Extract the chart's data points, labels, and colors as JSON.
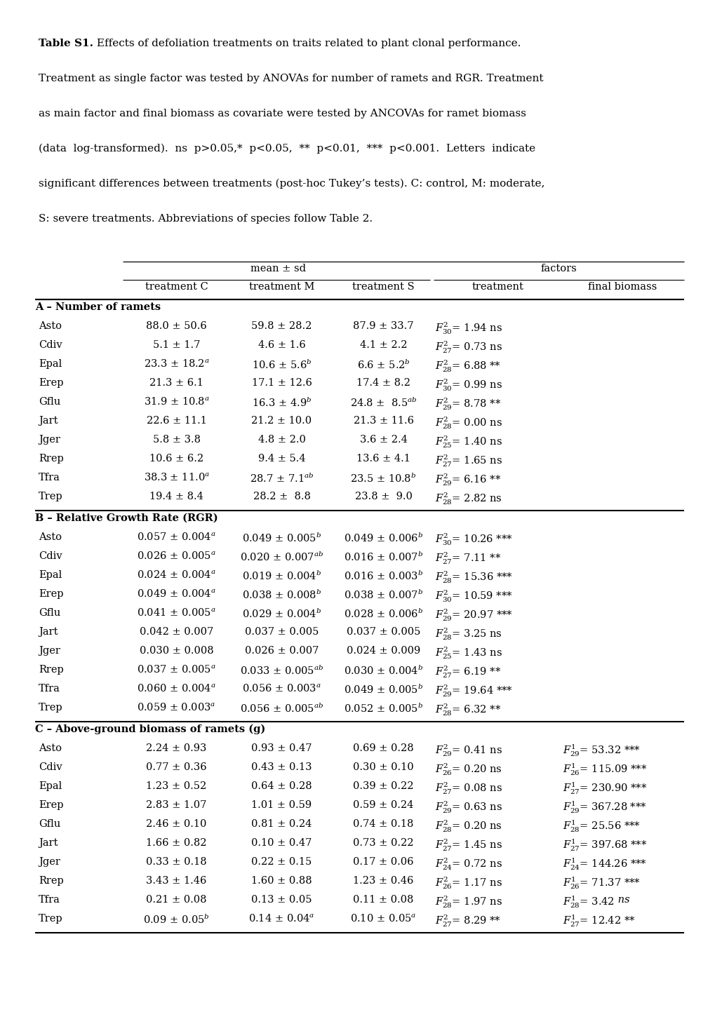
{
  "figsize": [
    10.2,
    14.43
  ],
  "dpi": 100,
  "font_size": 10.5,
  "caption_font_size": 11.0,
  "caption_lines": [
    [
      [
        "bold",
        "Table S1."
      ],
      [
        "normal",
        " Effects of defoliation treatments on traits related to plant clonal performance."
      ]
    ],
    [
      [
        "normal",
        "Treatment as single factor was tested by ANOVAs for number of ramets and RGR. Treatment"
      ]
    ],
    [
      [
        "normal",
        "as main factor and final biomass as covariate were tested by ANCOVAs for ramet biomass"
      ]
    ],
    [
      [
        "normal",
        "(data  log-transformed).  ns  p>0.05,*  p<0.05,  **  p<0.01,  ***  p<0.001.  Letters  indicate"
      ]
    ],
    [
      [
        "normal",
        "significant differences between treatments (post-hoc Tukey’s tests). C: control, M: moderate,"
      ]
    ],
    [
      [
        "normal",
        "S: severe treatments. Abbreviations of species follow Table 2."
      ]
    ]
  ],
  "col_headers_sub": [
    "treatment C",
    "treatment M",
    "treatment S",
    "treatment",
    "final biomass"
  ],
  "sections": [
    {
      "label": "A – Number of ramets",
      "rows": [
        [
          "Asto",
          "88.0 ± 50.6",
          "59.8 ± 28.2",
          "87.9 ± 33.7",
          "$F^2_{30}$= 1.94 ns",
          ""
        ],
        [
          "Cdiv",
          "5.1 ± 1.7",
          "4.6 ± 1.6",
          "4.1 ± 2.2",
          "$F^2_{27}$= 0.73 ns",
          ""
        ],
        [
          "Epal",
          "23.3 ± 18.2$^a$",
          "10.6 ± 5.6$^b$",
          "6.6 ± 5.2$^b$",
          "$F^2_{28}$= 6.88 **",
          ""
        ],
        [
          "Erep",
          "21.3 ± 6.1",
          "17.1 ± 12.6",
          "17.4 ± 8.2",
          "$F^2_{30}$= 0.99 ns",
          ""
        ],
        [
          "Gflu",
          "31.9 ± 10.8$^a$",
          "16.3 ± 4.9$^b$",
          "24.8 ±  8.5$^{ab}$",
          "$F^2_{29}$= 8.78 **",
          ""
        ],
        [
          "Jart",
          "22.6 ± 11.1",
          "21.2 ± 10.0",
          "21.3 ± 11.6",
          "$F^2_{28}$= 0.00 ns",
          ""
        ],
        [
          "Jger",
          "5.8 ± 3.8",
          "4.8 ± 2.0",
          "3.6 ± 2.4",
          "$F^2_{25}$= 1.40 ns",
          ""
        ],
        [
          "Rrep",
          "10.6 ± 6.2",
          "9.4 ± 5.4",
          "13.6 ± 4.1",
          "$F^2_{27}$= 1.65 ns",
          ""
        ],
        [
          "Tfra",
          "38.3 ± 11.0$^a$",
          "28.7 ± 7.1$^{ab}$",
          "23.5 ± 10.8$^b$",
          "$F^2_{29}$= 6.16 **",
          ""
        ],
        [
          "Trep",
          "19.4 ± 8.4",
          "28.2 ±  8.8",
          "23.8 ±  9.0",
          "$F^2_{28}$= 2.82 ns",
          ""
        ]
      ]
    },
    {
      "label": "B – Relative Growth Rate (RGR)",
      "rows": [
        [
          "Asto",
          "0.057 ± 0.004$^a$",
          "0.049 ± 0.005$^b$",
          "0.049 ± 0.006$^b$",
          "$F^2_{30}$= 10.26 ***",
          ""
        ],
        [
          "Cdiv",
          "0.026 ± 0.005$^a$",
          "0.020 ± 0.007$^{ab}$",
          "0.016 ± 0.007$^b$",
          "$F^2_{27}$= 7.11 **",
          ""
        ],
        [
          "Epal",
          "0.024 ± 0.004$^a$",
          "0.019 ± 0.004$^b$",
          "0.016 ± 0.003$^b$",
          "$F^2_{28}$= 15.36 ***",
          ""
        ],
        [
          "Erep",
          "0.049 ± 0.004$^a$",
          "0.038 ± 0.008$^b$",
          "0.038 ± 0.007$^b$",
          "$F^2_{30}$= 10.59 ***",
          ""
        ],
        [
          "Gflu",
          "0.041 ± 0.005$^a$",
          "0.029 ± 0.004$^b$",
          "0.028 ± 0.006$^b$",
          "$F^2_{29}$= 20.97 ***",
          ""
        ],
        [
          "Jart",
          "0.042 ± 0.007",
          "0.037 ± 0.005",
          "0.037 ± 0.005",
          "$F^2_{28}$= 3.25 ns",
          ""
        ],
        [
          "Jger",
          "0.030 ± 0.008",
          "0.026 ± 0.007",
          "0.024 ± 0.009",
          "$F^2_{25}$= 1.43 ns",
          ""
        ],
        [
          "Rrep",
          "0.037 ± 0.005$^a$",
          "0.033 ± 0.005$^{ab}$",
          "0.030 ± 0.004$^b$",
          "$F^2_{27}$= 6.19 **",
          ""
        ],
        [
          "Tfra",
          "0.060 ± 0.004$^a$",
          "0.056 ± 0.003$^a$",
          "0.049 ± 0.005$^b$",
          "$F^2_{29}$= 19.64 ***",
          ""
        ],
        [
          "Trep",
          "0.059 ± 0.003$^a$",
          "0.056 ± 0.005$^{ab}$",
          "0.052 ± 0.005$^b$",
          "$F^2_{28}$= 6.32 **",
          ""
        ]
      ]
    },
    {
      "label": "C – Above-ground biomass of ramets (g)",
      "rows": [
        [
          "Asto",
          "2.24 ± 0.93",
          "0.93 ± 0.47",
          "0.69 ± 0.28",
          "$F^2_{29}$= 0.41 ns",
          "$F^1_{29}$= 53.32 ***"
        ],
        [
          "Cdiv",
          "0.77 ± 0.36",
          "0.43 ± 0.13",
          "0.30 ± 0.10",
          "$F^2_{26}$= 0.20 ns",
          "$F^1_{26}$= 115.09 ***"
        ],
        [
          "Epal",
          "1.23 ± 0.52",
          "0.64 ± 0.28",
          "0.39 ± 0.22",
          "$F^2_{27}$= 0.08 ns",
          "$F^1_{27}$= 230.90 ***"
        ],
        [
          "Erep",
          "2.83 ± 1.07",
          "1.01 ± 0.59",
          "0.59 ± 0.24",
          "$F^2_{29}$= 0.63 ns",
          "$F^1_{29}$= 367.28 ***"
        ],
        [
          "Gflu",
          "2.46 ± 0.10",
          "0.81 ± 0.24",
          "0.74 ± 0.18",
          "$F^2_{28}$= 0.20 ns",
          "$F^1_{28}$= 25.56 ***"
        ],
        [
          "Jart",
          "1.66 ± 0.82",
          "0.10 ± 0.47",
          "0.73 ± 0.22",
          "$F^2_{27}$= 1.45 ns",
          "$F^1_{27}$= 397.68 ***"
        ],
        [
          "Jger",
          "0.33 ± 0.18",
          "0.22 ± 0.15",
          "0.17 ± 0.06",
          "$F^2_{24}$= 0.72 ns",
          "$F^1_{24}$= 144.26 ***"
        ],
        [
          "Rrep",
          "3.43 ± 1.46",
          "1.60 ± 0.88",
          "1.23 ± 0.46",
          "$F^2_{26}$= 1.17 ns",
          "$F^1_{26}$= 71.37 ***"
        ],
        [
          "Tfra",
          "0.21 ± 0.08",
          "0.13 ± 0.05",
          "0.11 ± 0.08",
          "$F^2_{28}$= 1.97 ns",
          "$F^1_{28}$= 3.42 ns"
        ],
        [
          "Trep",
          "0.09 ± 0.05$^b$",
          "0.14 ± 0.04$^a$",
          "0.10 ± 0.05$^a$",
          "$F^2_{27}$= 8.29 **",
          "$F^1_{27}$= 12.42 **"
        ]
      ]
    }
  ]
}
